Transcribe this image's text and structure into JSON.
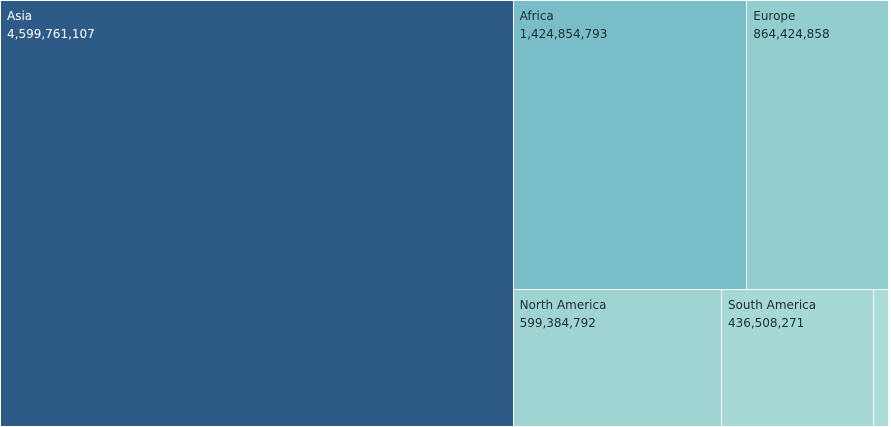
{
  "chart_data": {
    "type": "treemap",
    "title": "",
    "items": [
      {
        "name": "Asia",
        "value": 4599761107,
        "display": "4,599,761,107",
        "color": "#2e5a87",
        "text_color": "#ffffff"
      },
      {
        "name": "Africa",
        "value": 1424854793,
        "display": "1,424,854,793",
        "color": "#78bdc8",
        "text_color": "#1f2d33"
      },
      {
        "name": "Europe",
        "value": 864424858,
        "display": "864,424,858",
        "color": "#92cdcf",
        "text_color": "#1f2d33"
      },
      {
        "name": "North America",
        "value": 599384792,
        "display": "599,384,792",
        "color": "#a0d4d3",
        "text_color": "#1f2d33"
      },
      {
        "name": "South America",
        "value": 436508271,
        "display": "436,508,271",
        "color": "#a6d9d4",
        "text_color": "#1f2d33"
      },
      {
        "name": "",
        "value": 44000000,
        "display": "",
        "color": "#acdcd7",
        "text_color": "#1f2d33"
      }
    ]
  }
}
